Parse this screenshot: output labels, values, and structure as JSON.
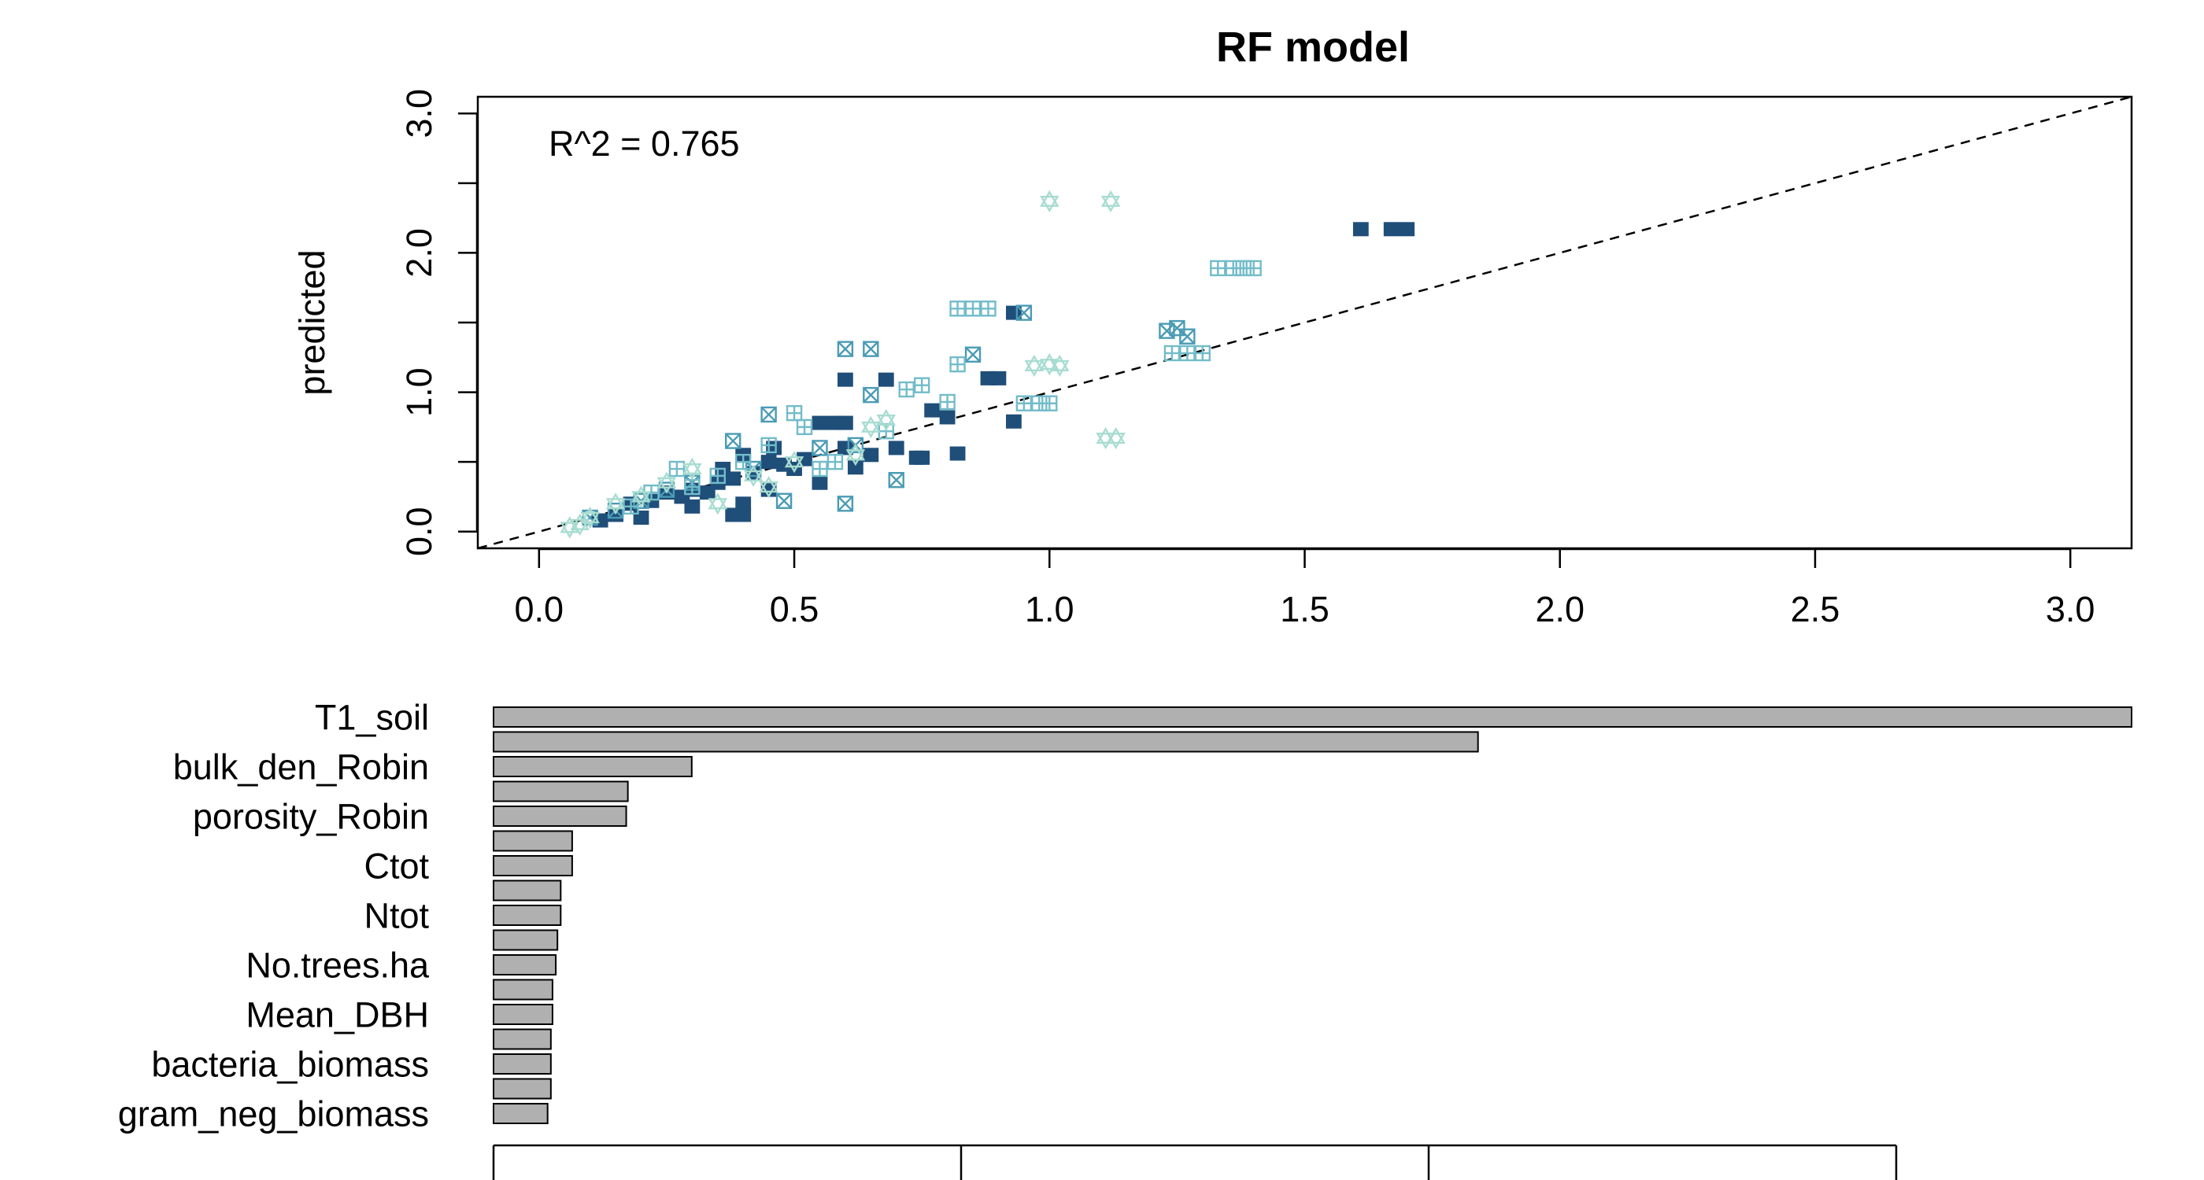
{
  "chart_data": [
    {
      "type": "scatter",
      "title": "RF model",
      "xlabel": "",
      "ylabel": "predicted",
      "annotation": "R^2 = 0.765",
      "xlim": [
        -0.12,
        3.12
      ],
      "ylim": [
        -0.12,
        3.12
      ],
      "x_ticks": [
        0.0,
        0.5,
        1.0,
        1.5,
        2.0,
        2.5,
        3.0
      ],
      "x_tick_labels": [
        "0.0",
        "0.5",
        "1.0",
        "1.5",
        "2.0",
        "2.5",
        "3.0"
      ],
      "y_ticks": [
        0.0,
        0.5,
        1.0,
        1.5,
        2.0,
        2.5,
        3.0
      ],
      "y_tick_labels": [
        "0.0",
        "1.0",
        "2.0",
        "3.0"
      ],
      "y_labeled_ticks": [
        0.0,
        1.0,
        2.0,
        3.0
      ],
      "reference_line": "y = x (dashed)",
      "grid": false,
      "colors": {
        "navy": "#1f4e79",
        "teal": "#4a9bb5",
        "light_teal": "#72bcc9",
        "mint": "#a8dcd1"
      },
      "series": [
        {
          "marker": "filled-square",
          "color": "#1f4e79",
          "points": [
            [
              1.61,
              2.17
            ],
            [
              1.67,
              2.17
            ],
            [
              1.7,
              2.17
            ],
            [
              0.93,
              1.57
            ],
            [
              0.6,
              1.09
            ],
            [
              0.68,
              1.09
            ],
            [
              0.88,
              1.1
            ],
            [
              0.9,
              1.1
            ],
            [
              0.77,
              0.87
            ],
            [
              0.8,
              0.82
            ],
            [
              0.74,
              0.53
            ],
            [
              0.75,
              0.53
            ],
            [
              0.82,
              0.56
            ],
            [
              0.93,
              0.79
            ],
            [
              0.55,
              0.78
            ],
            [
              0.58,
              0.78
            ],
            [
              0.6,
              0.78
            ],
            [
              0.4,
              0.55
            ],
            [
              0.45,
              0.5
            ],
            [
              0.5,
              0.45
            ],
            [
              0.35,
              0.35
            ],
            [
              0.3,
              0.3
            ],
            [
              0.28,
              0.25
            ],
            [
              0.25,
              0.28
            ],
            [
              0.38,
              0.38
            ],
            [
              0.42,
              0.42
            ],
            [
              0.48,
              0.48
            ],
            [
              0.52,
              0.52
            ],
            [
              0.6,
              0.6
            ],
            [
              0.65,
              0.55
            ],
            [
              0.7,
              0.6
            ],
            [
              0.55,
              0.35
            ],
            [
              0.45,
              0.3
            ],
            [
              0.4,
              0.2
            ],
            [
              0.38,
              0.12
            ],
            [
              0.4,
              0.12
            ],
            [
              0.3,
              0.18
            ],
            [
              0.2,
              0.1
            ],
            [
              0.12,
              0.08
            ],
            [
              0.15,
              0.12
            ],
            [
              0.18,
              0.2
            ],
            [
              0.22,
              0.22
            ],
            [
              0.33,
              0.28
            ],
            [
              0.36,
              0.45
            ],
            [
              0.46,
              0.6
            ],
            [
              0.62,
              0.46
            ]
          ]
        },
        {
          "marker": "boxed-cross",
          "color": "#4a9bb5",
          "points": [
            [
              1.23,
              1.44
            ],
            [
              1.25,
              1.46
            ],
            [
              1.27,
              1.4
            ],
            [
              0.6,
              1.31
            ],
            [
              0.65,
              1.31
            ],
            [
              0.95,
              1.57
            ],
            [
              0.85,
              1.27
            ],
            [
              0.65,
              0.98
            ],
            [
              0.55,
              0.6
            ],
            [
              0.62,
              0.62
            ],
            [
              0.7,
              0.37
            ],
            [
              0.6,
              0.2
            ],
            [
              0.48,
              0.22
            ],
            [
              0.42,
              0.45
            ],
            [
              0.38,
              0.65
            ],
            [
              0.3,
              0.35
            ],
            [
              0.25,
              0.3
            ],
            [
              0.2,
              0.22
            ],
            [
              0.15,
              0.15
            ],
            [
              0.1,
              0.1
            ],
            [
              0.45,
              0.84
            ]
          ]
        },
        {
          "marker": "boxed-plus",
          "color": "#72bcc9",
          "points": [
            [
              1.33,
              1.89
            ],
            [
              1.36,
              1.89
            ],
            [
              1.38,
              1.89
            ],
            [
              1.4,
              1.89
            ],
            [
              0.82,
              1.6
            ],
            [
              0.85,
              1.6
            ],
            [
              0.88,
              1.6
            ],
            [
              0.95,
              0.92
            ],
            [
              0.98,
              0.92
            ],
            [
              1.0,
              0.92
            ],
            [
              1.24,
              1.28
            ],
            [
              1.27,
              1.28
            ],
            [
              1.3,
              1.28
            ],
            [
              0.75,
              1.05
            ],
            [
              0.72,
              1.02
            ],
            [
              0.82,
              1.2
            ],
            [
              0.8,
              0.93
            ],
            [
              0.5,
              0.85
            ],
            [
              0.52,
              0.75
            ],
            [
              0.45,
              0.62
            ],
            [
              0.4,
              0.5
            ],
            [
              0.35,
              0.4
            ],
            [
              0.3,
              0.32
            ],
            [
              0.27,
              0.45
            ],
            [
              0.22,
              0.28
            ],
            [
              0.18,
              0.18
            ],
            [
              0.55,
              0.45
            ],
            [
              0.58,
              0.5
            ],
            [
              0.68,
              0.72
            ]
          ]
        },
        {
          "marker": "star-of-david",
          "color": "#a8dcd1",
          "points": [
            [
              1.0,
              2.37
            ],
            [
              1.12,
              2.37
            ],
            [
              0.97,
              1.19
            ],
            [
              1.0,
              1.2
            ],
            [
              1.02,
              1.19
            ],
            [
              1.11,
              0.67
            ],
            [
              1.13,
              0.67
            ],
            [
              0.68,
              0.8
            ],
            [
              0.65,
              0.75
            ],
            [
              0.62,
              0.55
            ],
            [
              0.5,
              0.5
            ],
            [
              0.42,
              0.4
            ],
            [
              0.3,
              0.45
            ],
            [
              0.25,
              0.35
            ],
            [
              0.2,
              0.25
            ],
            [
              0.15,
              0.2
            ],
            [
              0.1,
              0.1
            ],
            [
              0.06,
              0.03
            ],
            [
              0.08,
              0.05
            ],
            [
              0.35,
              0.2
            ],
            [
              0.45,
              0.32
            ]
          ]
        }
      ]
    },
    {
      "type": "bar",
      "orientation": "horizontal",
      "title": "",
      "xlabel": "",
      "ylabel": "",
      "bar_color": "#b0b0b0",
      "x_axis_ticks_count": 4,
      "xlim": [
        0,
        1
      ],
      "categories": [
        "T1_soil",
        "",
        "bulk_den_Robin",
        "",
        "porosity_Robin",
        "",
        "Ctot",
        "",
        "Ntot",
        "",
        "No.trees.ha",
        "",
        "Mean_DBH",
        "",
        "bacteria_biomass",
        "",
        "gram_neg_biomass"
      ],
      "values": [
        1.0,
        0.601,
        0.121,
        0.082,
        0.081,
        0.048,
        0.048,
        0.041,
        0.041,
        0.039,
        0.038,
        0.036,
        0.036,
        0.035,
        0.035,
        0.035,
        0.033
      ]
    }
  ]
}
